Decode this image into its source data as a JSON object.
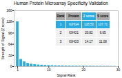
{
  "chart_data": {
    "type": "bar",
    "title": "Human Protein Microarray Specificity Validation",
    "xlabel": "Signal Rank",
    "ylabel": "Strength of Signal (Z score)",
    "x": [
      1,
      2,
      3,
      4,
      5,
      6,
      7,
      8,
      9,
      10,
      11,
      12,
      13,
      14,
      15,
      16,
      17,
      18,
      19,
      20,
      21,
      22,
      23,
      24,
      25,
      26,
      27,
      28,
      29
    ],
    "values": [
      128.53,
      20.82,
      14.17,
      9.5,
      7.2,
      5.8,
      4.9,
      4.2,
      3.7,
      3.3,
      3.0,
      2.7,
      2.5,
      2.3,
      2.1,
      2.0,
      1.9,
      1.8,
      1.7,
      1.6,
      1.5,
      1.4,
      1.3,
      1.2,
      1.1,
      1.0,
      0.9,
      0.8,
      0.7
    ],
    "color": "#29abe2",
    "xlim": [
      0,
      30
    ],
    "ylim": [
      0,
      160
    ],
    "xticks": [
      1,
      10,
      20,
      30
    ],
    "yticks": [
      0,
      32,
      64,
      96,
      128,
      160
    ],
    "table": {
      "headers": [
        "Rank",
        "Protein",
        "Z score",
        "S score"
      ],
      "rows": [
        [
          "1",
          "IGHG4",
          "128.53",
          "137.71"
        ],
        [
          "2",
          "IGHG1",
          "20.82",
          "6.65"
        ],
        [
          "3",
          "IGHG3",
          "14.17",
          "11.08"
        ]
      ]
    }
  }
}
